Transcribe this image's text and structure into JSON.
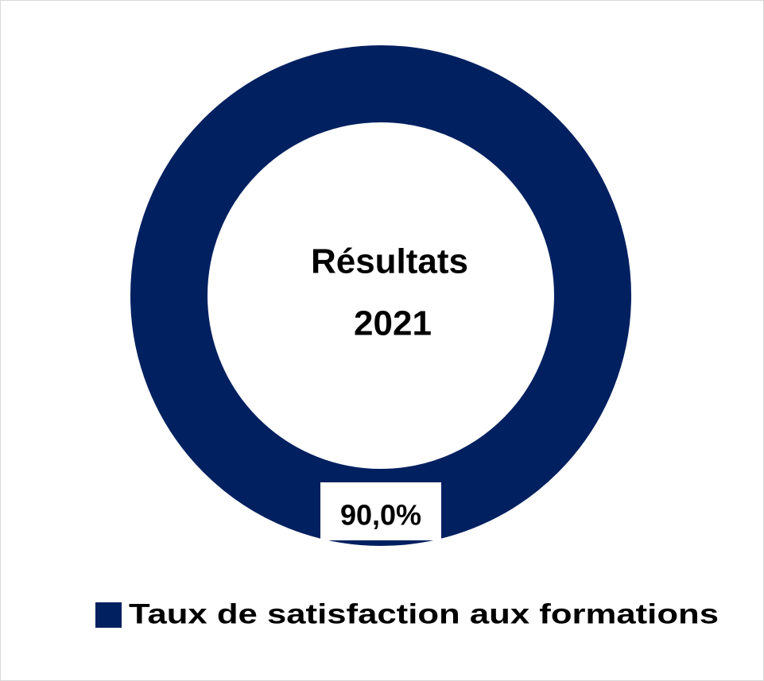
{
  "chart_data": {
    "type": "donut",
    "center_text": [
      "Résultats",
      "2021"
    ],
    "series": [
      {
        "name": "Taux de satisfaction aux formations",
        "color": "#002060",
        "values": [
          90
        ],
        "value_labels": [
          "90,0%"
        ]
      }
    ]
  }
}
